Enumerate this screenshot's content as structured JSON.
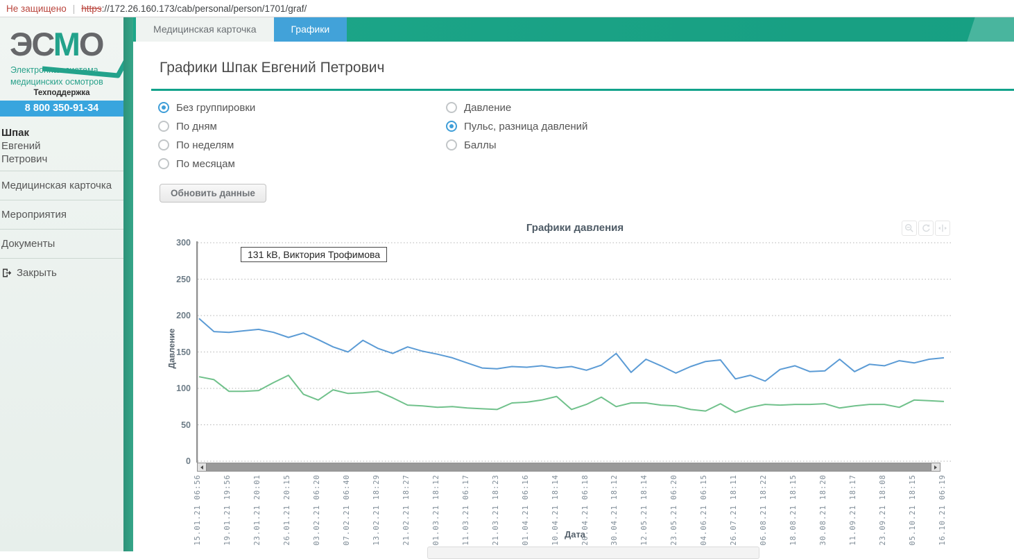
{
  "browser": {
    "warning": "Не защищено",
    "separator": "|",
    "protocol": "https",
    "url_rest": "://172.26.160.173/cab/personal/person/1701/graf/"
  },
  "sidebar": {
    "logo": {
      "part1": "ЭС",
      "part2": "М",
      "part3": "О",
      "subtitle_line1": "Электронная система",
      "subtitle_line2": "медицинских осмотров"
    },
    "support_label": "Техподдержка",
    "phone": "8 800 350-91-34",
    "patient": {
      "last_name": "Шпак",
      "first_name": "Евгений",
      "middle_name": "Петрович"
    },
    "menu": [
      {
        "label": "Медицинская карточка",
        "name": "sidebar-item-medical-card"
      },
      {
        "label": "Мероприятия",
        "name": "sidebar-item-events"
      },
      {
        "label": "Документы",
        "name": "sidebar-item-documents"
      },
      {
        "label": "Закрыть",
        "name": "sidebar-item-close",
        "icon": "exit-icon"
      }
    ]
  },
  "tabs": [
    {
      "label": "Медицинская карточка",
      "active": false,
      "name": "tab-medical-card"
    },
    {
      "label": "Графики",
      "active": true,
      "name": "tab-graphs"
    }
  ],
  "page": {
    "title": "Графики Шпак Евгений Петрович"
  },
  "filters": {
    "grouping": {
      "selected": 0,
      "options": [
        {
          "label": "Без группировки",
          "name": "radio-no-grouping"
        },
        {
          "label": "По дням",
          "name": "radio-by-days"
        },
        {
          "label": "По неделям",
          "name": "radio-by-weeks"
        },
        {
          "label": "По месяцам",
          "name": "radio-by-months"
        }
      ]
    },
    "metric": {
      "selected": 1,
      "options": [
        {
          "label": "Давление",
          "name": "radio-pressure"
        },
        {
          "label": "Пульс, разница давлений",
          "name": "radio-pulse-pressure-diff"
        },
        {
          "label": "Баллы",
          "name": "radio-scores"
        }
      ]
    }
  },
  "refresh_button": "Обновить данные",
  "tooltip": "131 kB, Виктория Трофимова",
  "chart_toolbar": [
    "zoom-out-icon",
    "reset-icon",
    "pan-icon"
  ],
  "colors": {
    "accent_teal": "#12a28b",
    "accent_blue": "#42a2d9",
    "phone_bar": "#38a5de"
  },
  "chart_data": {
    "type": "line",
    "title": "Графики давления",
    "xlabel": "Дата",
    "ylabel": "Давление",
    "ylim": [
      0,
      300
    ],
    "yticks": [
      0,
      50,
      100,
      150,
      200,
      250,
      300
    ],
    "grid": true,
    "points_per_label": 2,
    "x_tick_labels": [
      "15.01.21 06:56",
      "19.01.21 19:56",
      "23.01.21 20:01",
      "26.01.21 20:15",
      "03.02.21 06:20",
      "07.02.21 06:40",
      "13.02.21 18:29",
      "21.02.21 18:27",
      "01.03.21 18:12",
      "11.03.21 06:17",
      "21.03.21 18:23",
      "01.04.21 06:16",
      "10.04.21 18:14",
      "20.04.21 06:18",
      "30.04.21 18:12",
      "12.05.21 18:14",
      "23.05.21 06:20",
      "04.06.21 06:15",
      "26.07.21 18:11",
      "06.08.21 18:22",
      "18.08.21 18:15",
      "30.08.21 18:20",
      "11.09.21 18:17",
      "23.09.21 18:08",
      "05.10.21 18:15",
      "16.10.21 06:19"
    ],
    "series": [
      {
        "name": "upper-pressure-blue",
        "color": "#5b9bd5",
        "values": [
          196,
          178,
          177,
          179,
          181,
          177,
          170,
          176,
          167,
          157,
          150,
          166,
          155,
          148,
          157,
          151,
          147,
          142,
          135,
          128,
          127,
          130,
          129,
          131,
          128,
          130,
          125,
          132,
          148,
          122,
          140,
          131,
          121,
          130,
          137,
          139,
          113,
          118,
          110,
          126,
          131,
          123,
          124,
          140,
          123,
          133,
          131,
          138,
          135,
          140,
          142
        ]
      },
      {
        "name": "lower-pressure-green",
        "color": "#70c18b",
        "values": [
          116,
          112,
          96,
          96,
          97,
          108,
          118,
          92,
          84,
          98,
          93,
          94,
          96,
          87,
          77,
          76,
          74,
          75,
          73,
          72,
          71,
          80,
          81,
          84,
          89,
          71,
          78,
          88,
          75,
          80,
          80,
          77,
          76,
          71,
          69,
          79,
          67,
          74,
          78,
          77,
          78,
          78,
          79,
          73,
          76,
          78,
          78,
          74,
          84,
          83,
          82
        ]
      }
    ]
  }
}
